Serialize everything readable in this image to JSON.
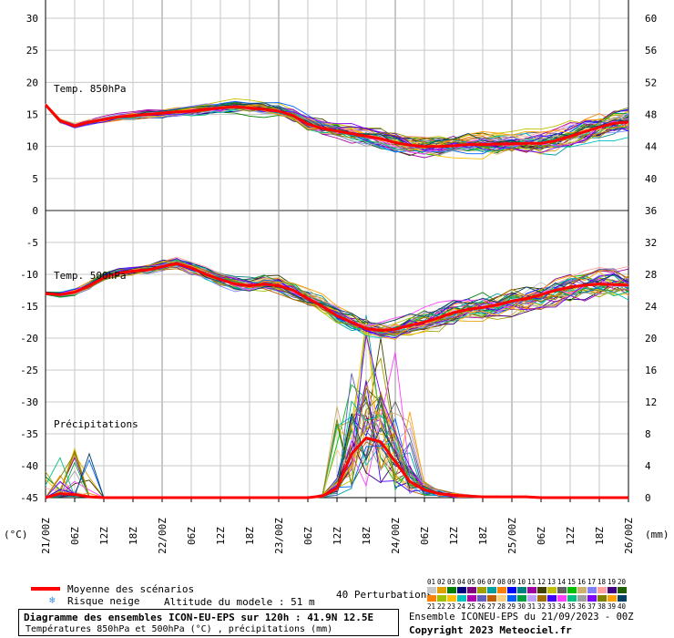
{
  "chart_data": {
    "type": "line",
    "left_unit": "(°C)",
    "right_unit": "(mm)",
    "panels": [
      {
        "label": "Temp. 850hPa",
        "ylim": [
          0,
          30
        ],
        "left_ticks": [
          0,
          5,
          10,
          15,
          20,
          25,
          30
        ],
        "right_ticks": [
          36,
          40,
          44,
          48,
          52,
          56,
          60
        ]
      },
      {
        "label": "Temp. 500hPa",
        "ylim": [
          -45,
          0
        ],
        "left_ticks": [
          -45,
          -40,
          -35,
          -30,
          -25,
          -20,
          -15,
          -10,
          -5
        ],
        "right_ticks": [
          0,
          4,
          8,
          12,
          16,
          20,
          24,
          28,
          32
        ]
      },
      {
        "label": "Précipitations",
        "plotted_on": "lower panel, right axis (mm)",
        "ylim_mm": [
          0,
          36
        ]
      }
    ],
    "x_ticks": [
      "21/00Z",
      "06Z",
      "12Z",
      "18Z",
      "22/00Z",
      "06Z",
      "12Z",
      "18Z",
      "23/00Z",
      "06Z",
      "12Z",
      "18Z",
      "24/00Z",
      "06Z",
      "12Z",
      "18Z",
      "25/00Z",
      "06Z",
      "12Z",
      "18Z",
      "26/00Z"
    ],
    "x_hours": [
      0,
      6,
      12,
      18,
      24,
      30,
      36,
      42,
      48,
      54,
      60,
      66,
      72,
      78,
      84,
      90,
      96,
      102,
      108,
      114,
      120
    ],
    "mean_series": [
      {
        "name": "Moyenne des scénarios",
        "variable": "t850",
        "values": [
          16.5,
          14.0,
          13.2,
          13.8,
          14.2,
          14.6,
          14.8,
          15.0,
          15.2,
          15.4,
          15.5,
          15.8,
          16.0,
          16.2,
          16.0,
          15.8,
          15.5,
          14.8,
          13.5,
          12.8,
          12.4,
          12.0,
          11.6,
          11.2,
          10.6,
          10.2,
          10.0,
          10.0,
          10.1,
          10.3,
          10.3,
          10.4,
          10.4,
          10.5,
          10.5,
          10.9,
          11.6,
          12.3,
          13.0,
          13.6,
          13.8
        ]
      },
      {
        "name": "Moyenne des scénarios",
        "variable": "t500",
        "values": [
          -13.0,
          -13.2,
          -12.8,
          -11.8,
          -10.5,
          -9.8,
          -9.5,
          -9.3,
          -8.8,
          -8.3,
          -9.0,
          -10.0,
          -10.8,
          -11.5,
          -11.8,
          -11.5,
          -11.8,
          -12.5,
          -13.8,
          -15.0,
          -16.5,
          -17.5,
          -18.5,
          -18.8,
          -18.6,
          -18.0,
          -17.5,
          -16.8,
          -16.0,
          -15.5,
          -15.2,
          -14.8,
          -14.2,
          -13.8,
          -13.2,
          -12.5,
          -12.0,
          -11.7,
          -11.5,
          -11.6,
          -11.7
        ]
      },
      {
        "name": "Moyenne des scénarios",
        "variable": "precip_mm",
        "values": [
          0.0,
          0.5,
          0.4,
          0.1,
          0.0,
          0.0,
          0.0,
          0.0,
          0.0,
          0.0,
          0.0,
          0.0,
          0.0,
          0.0,
          0.0,
          0.0,
          0.0,
          0.0,
          0.0,
          0.2,
          1.2,
          5.5,
          7.5,
          7.0,
          4.5,
          2.0,
          1.0,
          0.5,
          0.3,
          0.2,
          0.1,
          0.1,
          0.1,
          0.1,
          0.0,
          0.0,
          0.0,
          0.0,
          0.0,
          0.0,
          0.0
        ]
      }
    ],
    "mean_step_hours": 3,
    "mean_color": "#ff0000",
    "members_label": "40 Perturbations",
    "member_numbers": [
      "01",
      "02",
      "03",
      "04",
      "05",
      "06",
      "07",
      "08",
      "09",
      "10",
      "11",
      "12",
      "13",
      "14",
      "15",
      "16",
      "17",
      "18",
      "19",
      "20",
      "21",
      "22",
      "23",
      "24",
      "25",
      "26",
      "27",
      "28",
      "29",
      "30",
      "31",
      "32",
      "33",
      "34",
      "35",
      "36",
      "37",
      "38",
      "39",
      "40"
    ],
    "member_colors": [
      "#c8c8c8",
      "#e0a000",
      "#008000",
      "#000080",
      "#800080",
      "#a0a000",
      "#00a0a0",
      "#ff8000",
      "#0000ff",
      "#008080",
      "#a000a0",
      "#404000",
      "#c0c000",
      "#606060",
      "#00c000",
      "#d0b070",
      "#8080ff",
      "#ffa0a0",
      "#400080",
      "#206000",
      "#ff8000",
      "#a0c000",
      "#ffc000",
      "#00c0c0",
      "#b000b0",
      "#6060c0",
      "#c06000",
      "#ffd080",
      "#0060ff",
      "#00a040",
      "#c0a0ff",
      "#a07000",
      "#4000ff",
      "#ff40ff",
      "#00c080",
      "#a0a0a0",
      "#8000ff",
      "#808000",
      "#ffa000",
      "#004060"
    ]
  },
  "legend": {
    "mean": "Moyenne des scénarios",
    "snow": "Risque neige",
    "altitude": "Altitude du modele : 51 m"
  },
  "footer": {
    "title": "Diagramme des ensembles ICON-EU-EPS sur 120h : 41.9N 12.5E",
    "subtitle": "Températures 850hPa et 500hPa (°C) , précipitations (mm)",
    "run": "Ensemble ICONEU-EPS du 21/09/2023 - 00Z",
    "copyright": "Copyright 2023 Meteociel.fr"
  }
}
